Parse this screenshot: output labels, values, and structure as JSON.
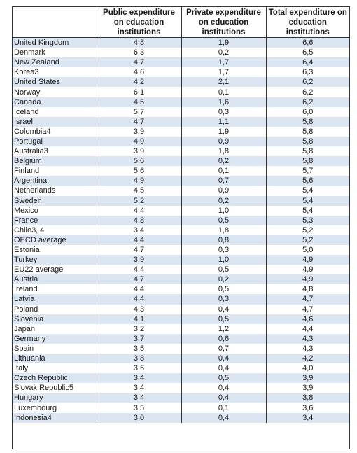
{
  "headers": [
    "",
    "Public expenditure on education institutions",
    "Private expenditure on education institutions",
    "Total expenditure on education institutions"
  ],
  "rows": [
    [
      "United Kingdom",
      "4,8",
      "1,9",
      "6,6"
    ],
    [
      "Denmark",
      "6,3",
      "0,2",
      "6,5"
    ],
    [
      "New Zealand",
      "4,7",
      "1,7",
      "6,4"
    ],
    [
      "Korea3",
      "4,6",
      "1,7",
      "6,3"
    ],
    [
      "United States",
      "4,2",
      "2,1",
      "6,2"
    ],
    [
      "Norway",
      "6,1",
      "0,1",
      "6,2"
    ],
    [
      "Canada",
      "4,5",
      "1,6",
      "6,2"
    ],
    [
      "Iceland",
      "5,7",
      "0,3",
      "6,0"
    ],
    [
      "Israel",
      "4,7",
      "1,1",
      "5,8"
    ],
    [
      "Colombia4",
      "3,9",
      "1,9",
      "5,8"
    ],
    [
      "Portugal",
      "4,9",
      "0,9",
      "5,8"
    ],
    [
      "Australia3",
      "3,9",
      "1,8",
      "5,8"
    ],
    [
      "Belgium",
      "5,6",
      "0,2",
      "5,8"
    ],
    [
      "Finland",
      "5,6",
      "0,1",
      "5,7"
    ],
    [
      "Argentina",
      "4,9",
      "0,7",
      "5,6"
    ],
    [
      "Netherlands",
      "4,5",
      "0,9",
      "5,4"
    ],
    [
      "Sweden",
      "5,2",
      "0,2",
      "5,4"
    ],
    [
      "Mexico",
      "4,4",
      "1,0",
      "5,4"
    ],
    [
      "France",
      "4,8",
      "0,5",
      "5,3"
    ],
    [
      "Chile3, 4",
      "3,4",
      "1,8",
      "5,2"
    ],
    [
      "OECD average",
      "4,4",
      "0,8",
      "5,2"
    ],
    [
      "Estonia",
      "4,7",
      "0,3",
      "5,0"
    ],
    [
      "Turkey",
      "3,9",
      "1,0",
      "4,9"
    ],
    [
      "EU22 average",
      "4,4",
      "0,5",
      "4,9"
    ],
    [
      "Austria",
      "4,7",
      "0,2",
      "4,9"
    ],
    [
      "Ireland",
      "4,4",
      "0,5",
      "4,8"
    ],
    [
      "Latvia",
      "4,4",
      "0,3",
      "4,7"
    ],
    [
      "Poland",
      "4,3",
      "0,4",
      "4,7"
    ],
    [
      "Slovenia",
      "4,1",
      "0,5",
      "4,6"
    ],
    [
      "Japan",
      "3,2",
      "1,2",
      "4,4"
    ],
    [
      "Germany",
      "3,7",
      "0,6",
      "4,3"
    ],
    [
      "Spain",
      "3,5",
      "0,7",
      "4,3"
    ],
    [
      "Lithuania",
      "3,8",
      "0,4",
      "4,2"
    ],
    [
      "Italy",
      "3,6",
      "0,4",
      "4,0"
    ],
    [
      "Czech Republic",
      "3,4",
      "0,5",
      "3,9"
    ],
    [
      "Slovak Republic5",
      "3,4",
      "0,4",
      "3,9"
    ],
    [
      "Hungary",
      "3,4",
      "0,4",
      "3,8"
    ],
    [
      "Luxembourg",
      "3,5",
      "0,1",
      "3,6"
    ],
    [
      "Indonesia4",
      "3,0",
      "0,4",
      "3,4"
    ]
  ],
  "colors": {
    "row_stripe": "#dce6f2",
    "row_plain": "#ffffff",
    "border": "#333333"
  }
}
